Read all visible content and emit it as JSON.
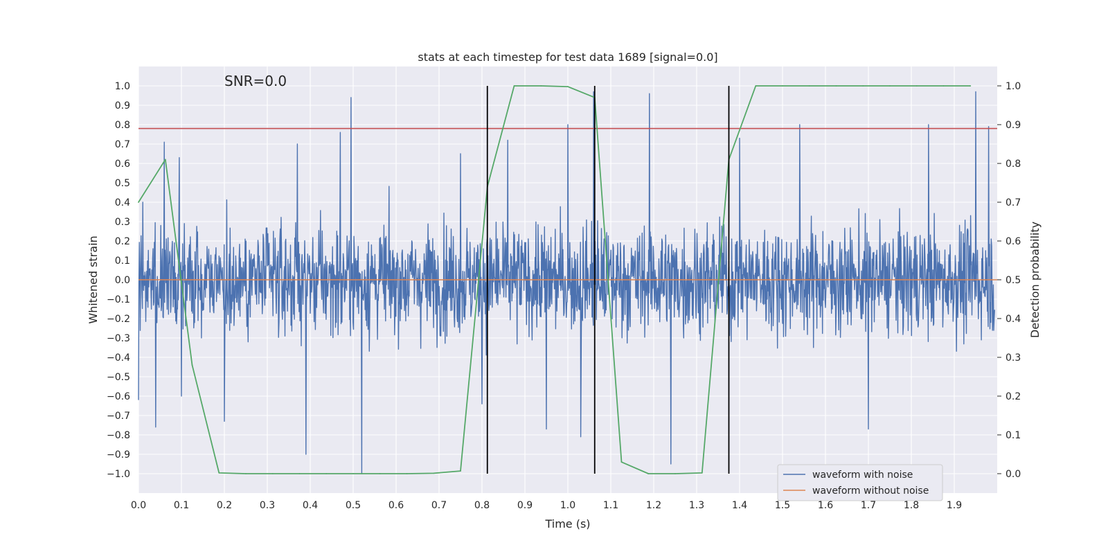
{
  "chart_data": {
    "type": "line",
    "title": "stats at each timestep for test data 1689 [signal=0.0]",
    "annotation": "SNR=0.0",
    "xlabel": "Time (s)",
    "ylabel": "Whitened strain",
    "y2label": "Detection probability",
    "xlim": [
      0.0,
      2.0
    ],
    "ylim": [
      -1.1,
      1.1
    ],
    "y2lim": [
      -0.05,
      1.05
    ],
    "x_ticks": [
      "0.0",
      "0.1",
      "0.2",
      "0.3",
      "0.4",
      "0.5",
      "0.6",
      "0.7",
      "0.8",
      "0.9",
      "1.0",
      "1.1",
      "1.2",
      "1.3",
      "1.4",
      "1.5",
      "1.6",
      "1.7",
      "1.8",
      "1.9"
    ],
    "y_ticks": [
      "1.0",
      "0.9",
      "0.8",
      "0.7",
      "0.6",
      "0.5",
      "0.4",
      "0.3",
      "0.2",
      "0.1",
      "0.0",
      "−0.1",
      "−0.2",
      "−0.3",
      "−0.4",
      "−0.5",
      "−0.6",
      "−0.7",
      "−0.8",
      "−0.9",
      "−1.0"
    ],
    "y2_ticks": [
      "1.0",
      "0.9",
      "0.8",
      "0.7",
      "0.6",
      "0.5",
      "0.4",
      "0.3",
      "0.2",
      "0.1",
      "0.0"
    ],
    "grid": true,
    "legend_position": "lower-right",
    "series": [
      {
        "name": "waveform with noise",
        "color": "#4c72b0",
        "axis": "left",
        "note_values": "dense noise between approximately -1.0 and 0.95; representative extrema",
        "x": [
          0.0,
          0.01,
          0.04,
          0.06,
          0.095,
          0.1,
          0.2,
          0.37,
          0.39,
          0.47,
          0.495,
          0.52,
          0.75,
          0.8,
          0.86,
          0.95,
          1.0,
          1.03,
          1.06,
          1.19,
          1.24,
          1.4,
          1.54,
          1.7,
          1.84,
          1.95,
          1.98
        ],
        "y": [
          -0.62,
          0.4,
          -0.76,
          0.71,
          0.63,
          -0.6,
          -0.73,
          0.7,
          -0.9,
          0.76,
          0.94,
          -1.0,
          0.65,
          -0.64,
          0.72,
          -0.77,
          0.8,
          -0.81,
          0.97,
          0.96,
          -0.95,
          0.73,
          0.8,
          -0.77,
          0.8,
          0.97,
          0.79
        ]
      },
      {
        "name": "waveform without noise",
        "color": "#dd8452",
        "axis": "left",
        "x": [
          0.0,
          2.0
        ],
        "y": [
          0.0,
          0.0
        ]
      },
      {
        "name": "",
        "color": "#55a868",
        "axis": "right",
        "x": [
          0.0,
          0.0625,
          0.125,
          0.1875,
          0.25,
          0.3125,
          0.375,
          0.4375,
          0.5,
          0.5625,
          0.625,
          0.6875,
          0.75,
          0.8125,
          0.875,
          0.9375,
          1.0,
          1.0625,
          1.125,
          1.1875,
          1.25,
          1.3125,
          1.375,
          1.4375,
          1.5,
          1.5625,
          1.625,
          1.6875,
          1.75,
          1.8125,
          1.875,
          1.9375
        ],
        "y": [
          0.7,
          0.81,
          0.28,
          0.002,
          0.0,
          0.0,
          0.0,
          0.0,
          0.0,
          0.0,
          0.0,
          0.001,
          0.007,
          0.74,
          1.0,
          1.0,
          0.998,
          0.97,
          0.03,
          0.0,
          0.0,
          0.002,
          0.81,
          1.0,
          1.0,
          1.0,
          1.0,
          1.0,
          1.0,
          1.0,
          1.0,
          1.0
        ]
      }
    ],
    "threshold": {
      "color": "#c44e52",
      "value": 0.78,
      "axis": "left"
    },
    "vertical_markers": {
      "color": "#000000",
      "x": [
        0.8125,
        1.0625,
        1.375
      ]
    }
  }
}
